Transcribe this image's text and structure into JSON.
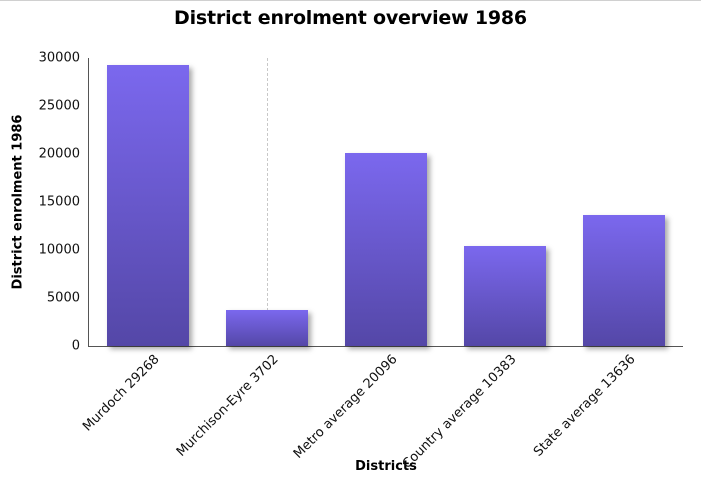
{
  "chart_data": {
    "type": "bar",
    "title": "District enrolment overview 1986",
    "xlabel": "Districts",
    "ylabel": "District enrolment 1986",
    "categories": [
      "Murdoch 29268",
      "Murchison-Eyre 3702",
      "Metro average 20096",
      "Country average 10383",
      "State average 13636"
    ],
    "values": [
      29268,
      3702,
      20096,
      10383,
      13636
    ],
    "ylim": [
      0,
      30000
    ],
    "yticks": [
      "0",
      "5000",
      "10000",
      "15000",
      "20000",
      "25000",
      "30000"
    ],
    "grid": false,
    "legend": null,
    "bar_color_top": "#7b68ee",
    "bar_color_bottom": "#5447a7",
    "hover_index": 1
  }
}
